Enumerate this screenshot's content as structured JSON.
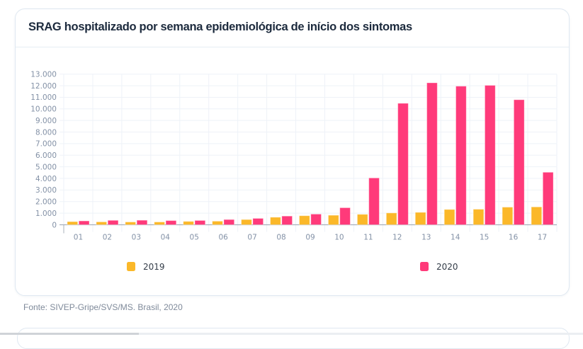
{
  "card": {
    "title": "SRAG hospitalizado por semana epidemiológica de início dos sintomas"
  },
  "source": "Fonte: SIVEP-Gripe/SVS/MS. Brasil, 2020",
  "chart_data": {
    "type": "bar",
    "title": "SRAG hospitalizado por semana epidemiológica de início dos sintomas",
    "xlabel": "",
    "ylabel": "",
    "categories": [
      "01",
      "02",
      "03",
      "04",
      "05",
      "06",
      "07",
      "08",
      "09",
      "10",
      "11",
      "12",
      "13",
      "14",
      "15",
      "16",
      "17"
    ],
    "series": [
      {
        "name": "2019",
        "color": "#fbb829",
        "values": [
          270,
          250,
          240,
          240,
          290,
          310,
          450,
          650,
          780,
          820,
          900,
          1020,
          1070,
          1320,
          1340,
          1520,
          1540
        ]
      },
      {
        "name": "2020",
        "color": "#ff3a7a",
        "values": [
          330,
          380,
          390,
          360,
          370,
          450,
          550,
          750,
          920,
          1470,
          4040,
          10480,
          12250,
          11960,
          12030,
          10790,
          4530
        ]
      }
    ],
    "ylim": [
      0,
      13000
    ],
    "yticks": [
      0,
      1000,
      2000,
      3000,
      4000,
      5000,
      6000,
      7000,
      8000,
      9000,
      10000,
      11000,
      12000,
      13000
    ],
    "ytick_labels": [
      "0",
      "1.000",
      "2.000",
      "3.000",
      "4.000",
      "5.000",
      "6.000",
      "7.000",
      "8.000",
      "9.000",
      "10.000",
      "11.000",
      "12.000",
      "13.000"
    ],
    "grid": true,
    "legend_position": "bottom",
    "colors": {
      "gridline": "#eef2f8",
      "axis": "#a8b0bb"
    }
  }
}
